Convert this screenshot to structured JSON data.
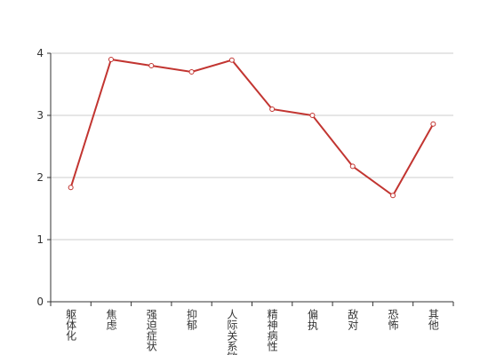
{
  "chart_data": {
    "type": "line",
    "categories": [
      "躯体化",
      "焦虑",
      "强迫症状",
      "抑郁",
      "人际关系敏感",
      "精神病性",
      "偏执",
      "敌对",
      "恐怖",
      "其他"
    ],
    "series": [
      {
        "color": "#c23531",
        "values": [
          1.84,
          3.9,
          3.8,
          3.7,
          3.89,
          3.1,
          3.0,
          2.18,
          1.71,
          2.86
        ]
      }
    ],
    "ylim": [
      0,
      4
    ],
    "yticks": [
      0,
      1,
      2,
      3,
      4
    ],
    "grid": true
  }
}
